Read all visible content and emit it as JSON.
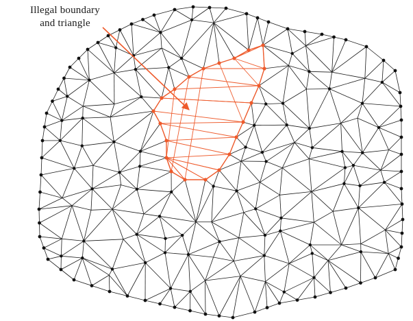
{
  "annotation": {
    "line1": "Illegal boundary",
    "line2": "and triangle"
  },
  "colors": {
    "mesh_edge": "#1a1a1a",
    "mesh_node": "#111111",
    "illegal": "#ee5a2b",
    "background": "#ffffff"
  },
  "diagram": {
    "subject": "triangulated irregular mesh with an illegal boundary and triangles highlighted",
    "legend": "none"
  }
}
